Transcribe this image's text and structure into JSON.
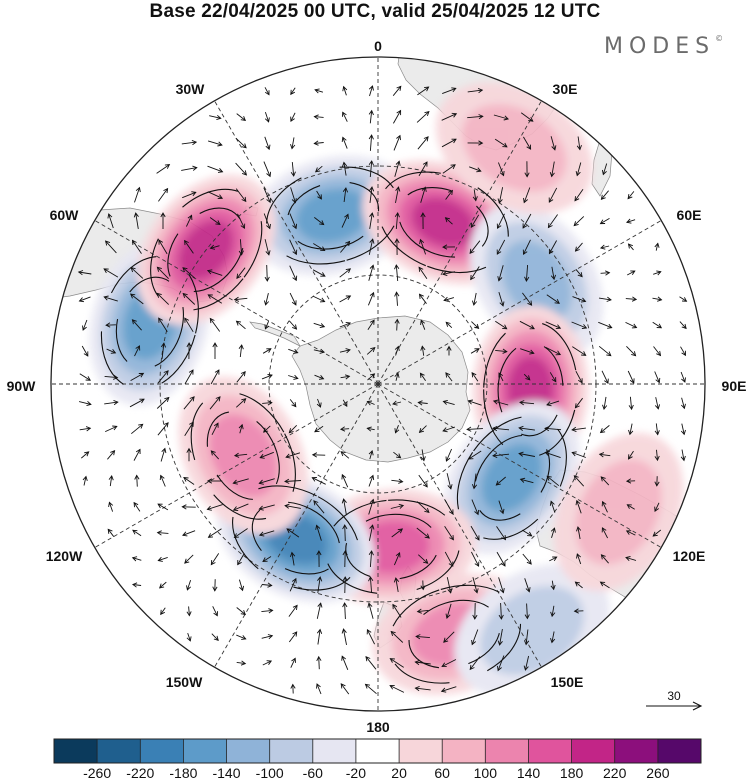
{
  "title": "Base 22/04/2025 00 UTC, valid 25/04/2025 12 UTC",
  "brand": "MODES",
  "brand_mark": "©",
  "longitude_labels": {
    "lon_0": "0",
    "lon_30e": "30E",
    "lon_60e": "60E",
    "lon_90e": "90E",
    "lon_120e": "120E",
    "lon_150e": "150E",
    "lon_180": "180",
    "lon_150w": "150W",
    "lon_120w": "120W",
    "lon_90w": "90W",
    "lon_60w": "60W",
    "lon_30w": "30W"
  },
  "reference_vector": {
    "label": "30"
  },
  "colorbar": {
    "levels": [
      "-260",
      "-220",
      "-180",
      "-140",
      "-100",
      "-60",
      "-20",
      "20",
      "60",
      "100",
      "140",
      "180",
      "220",
      "260"
    ],
    "colors": [
      "#0b3a5c",
      "#1f5f8e",
      "#3a80b5",
      "#5d9bc9",
      "#8fb3d8",
      "#bccbe3",
      "#e6e6f2",
      "#ffffff",
      "#f7d6da",
      "#f4b3c3",
      "#ec84ae",
      "#e0549d",
      "#c22587",
      "#8c0f7c",
      "#56086a"
    ]
  },
  "land_color": "#ebebeb",
  "anomaly_cells": [
    {
      "lon": 345,
      "colat": 48,
      "value": -150
    },
    {
      "lon": 22,
      "colat": 48,
      "value": 190
    },
    {
      "lon": 57,
      "colat": 52,
      "value": -110
    },
    {
      "lon": 92,
      "colat": 42,
      "value": 180
    },
    {
      "lon": 125,
      "colat": 45,
      "value": -160
    },
    {
      "lon": 175,
      "colat": 45,
      "value": 175
    },
    {
      "lon": 208,
      "colat": 48,
      "value": -190
    },
    {
      "lon": 242,
      "colat": 42,
      "value": 130
    },
    {
      "lon": 285,
      "colat": 65,
      "value": -170
    },
    {
      "lon": 308,
      "colat": 60,
      "value": 215
    },
    {
      "lon": 163,
      "colat": 72,
      "value": 120
    },
    {
      "lon": 148,
      "colat": 80,
      "value": -60
    },
    {
      "lon": 30,
      "colat": 75,
      "value": 70
    },
    {
      "lon": 118,
      "colat": 75,
      "value": 60
    }
  ]
}
